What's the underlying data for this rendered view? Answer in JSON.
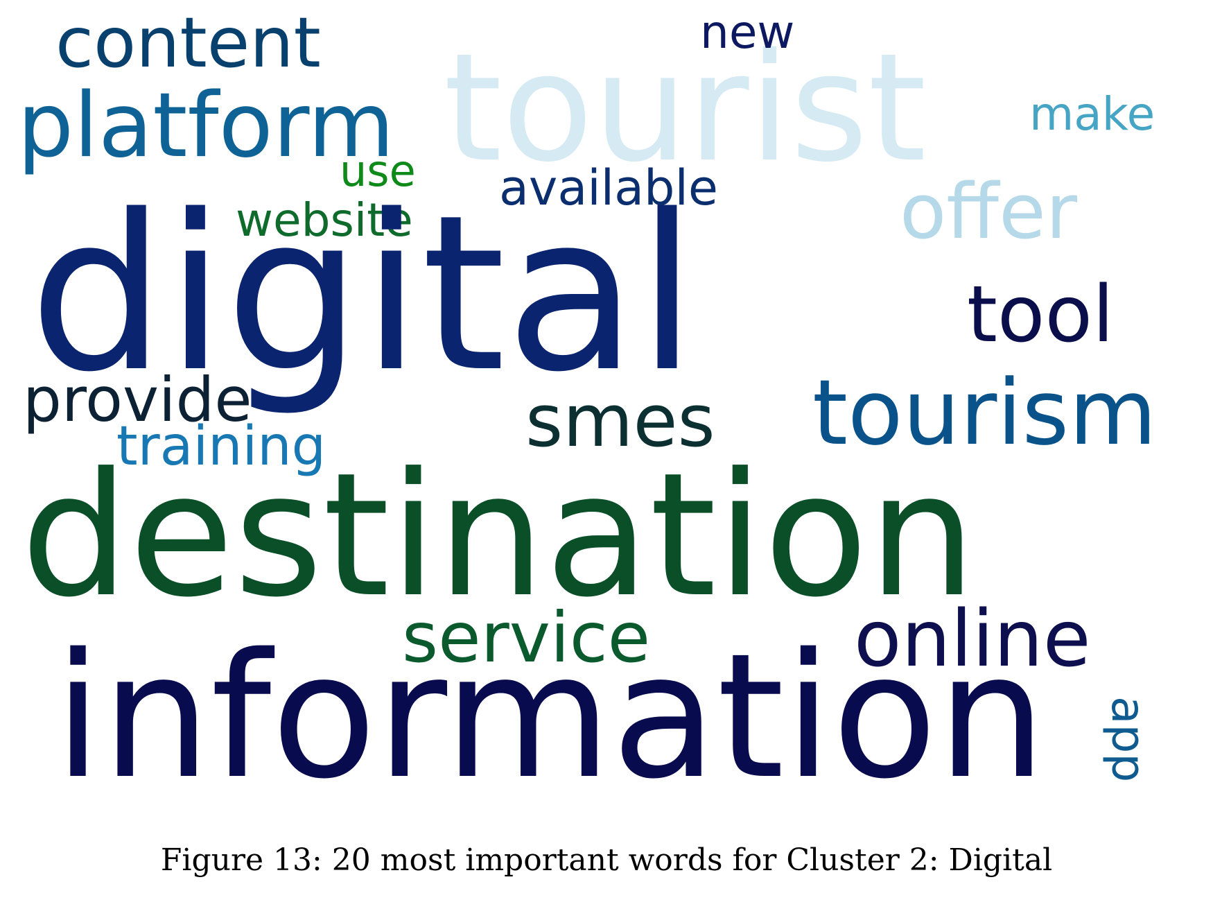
{
  "figure": {
    "caption": "Figure 13: 20 most important words for Cluster 2: Digital"
  },
  "word_cloud": {
    "words": [
      {
        "text": "digital",
        "color": "#0b2470"
      },
      {
        "text": "destination",
        "color": "#0a4f28"
      },
      {
        "text": "information",
        "color": "#080c4f"
      },
      {
        "text": "tourist",
        "color": "#d6eaf3"
      },
      {
        "text": "platform",
        "color": "#0e6296"
      },
      {
        "text": "content",
        "color": "#08406e"
      },
      {
        "text": "tourism",
        "color": "#09528a"
      },
      {
        "text": "tool",
        "color": "#0a0e4b"
      },
      {
        "text": "smes",
        "color": "#0c2f31"
      },
      {
        "text": "service",
        "color": "#0b5a2e"
      },
      {
        "text": "online",
        "color": "#0d0f4e"
      },
      {
        "text": "offer",
        "color": "#b5d9e8"
      },
      {
        "text": "provide",
        "color": "#0c2133"
      },
      {
        "text": "training",
        "color": "#1878b4"
      },
      {
        "text": "available",
        "color": "#0b2e6e"
      },
      {
        "text": "website",
        "color": "#0e6b2c"
      },
      {
        "text": "use",
        "color": "#0d8a19"
      },
      {
        "text": "make",
        "color": "#46a4c4"
      },
      {
        "text": "new",
        "color": "#0c1860"
      },
      {
        "text": "app",
        "color": "#0f5a8e"
      }
    ]
  }
}
